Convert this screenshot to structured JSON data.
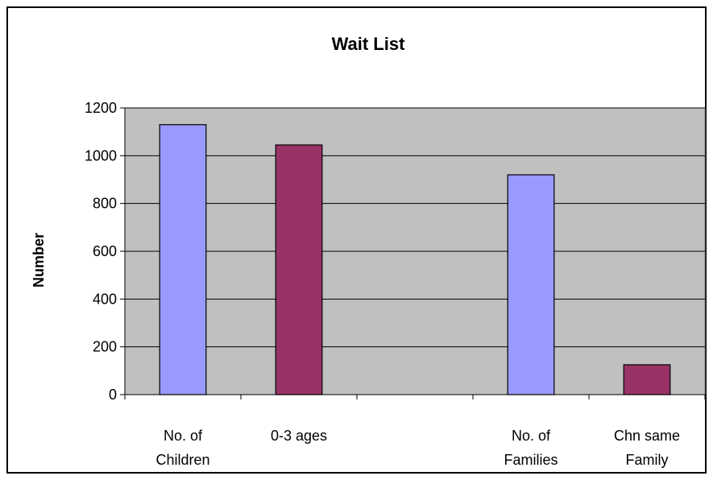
{
  "chart_data": {
    "type": "bar",
    "title": "Wait List",
    "xlabel": "",
    "ylabel": "Number",
    "ylim": [
      0,
      1200
    ],
    "yticks": [
      "0",
      "200",
      "400",
      "600",
      "800",
      "1000",
      "1200"
    ],
    "categories": [
      [
        "No. of",
        "Children"
      ],
      [
        "0-3 ages"
      ],
      [],
      [
        "No. of",
        "Families"
      ],
      [
        "Chn same",
        "Family"
      ]
    ],
    "values": [
      1130,
      1045,
      null,
      920,
      125
    ],
    "bar_colors": [
      "#9999ff",
      "#993366",
      null,
      "#9999ff",
      "#993366"
    ],
    "plot_background": "#c0c0c0",
    "grid": true,
    "legend": "none"
  }
}
